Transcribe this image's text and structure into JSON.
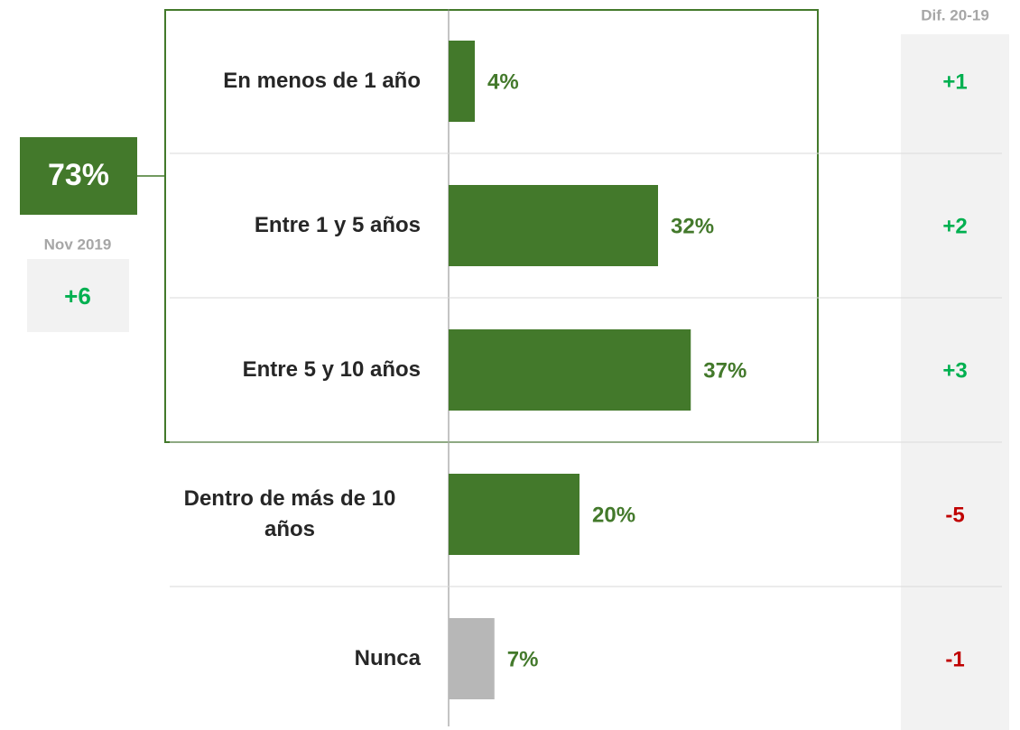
{
  "chart_data": {
    "type": "bar",
    "categories": [
      "En menos de 1 año",
      "Entre 1 y 5 años",
      "Entre 5 y 10 años",
      "Dentro de más de 10 años",
      "Nunca"
    ],
    "values": [
      4,
      32,
      37,
      20,
      7
    ],
    "value_labels": [
      "4%",
      "32%",
      "37%",
      "20%",
      "7%"
    ],
    "colors": [
      "#43792b",
      "#43792b",
      "#43792b",
      "#43792b",
      "#b7b7b7"
    ],
    "label_color": "#43792b",
    "diff": {
      "title": "Dif. 20-19",
      "values": [
        1,
        2,
        3,
        -5,
        -1
      ],
      "value_labels": [
        "+1",
        "+2",
        "+3",
        "-5",
        "-1"
      ],
      "positive_color": "#00b050",
      "negative_color": "#c00000"
    },
    "summary": {
      "label": "73%",
      "period": "Nov 2019",
      "change": "+6"
    }
  }
}
